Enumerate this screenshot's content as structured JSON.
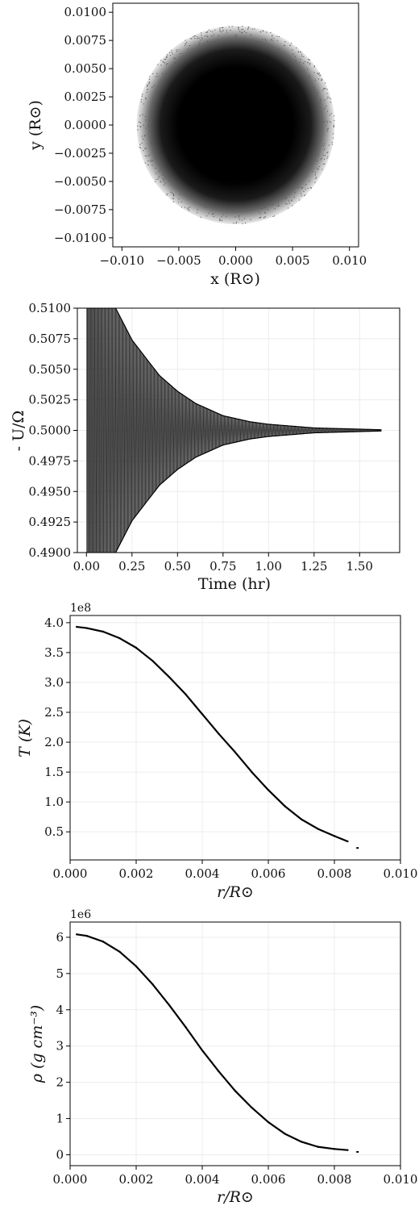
{
  "chart_data": [
    {
      "type": "scatter",
      "id": "particles",
      "xlabel": "x (R⊙)",
      "ylabel": "y (R⊙)",
      "xlim": [
        -0.0108,
        0.0108
      ],
      "ylim": [
        -0.0108,
        0.0108
      ],
      "xticks": [
        -0.01,
        -0.005,
        0.0,
        0.005,
        0.01
      ],
      "xtick_labels": [
        "−0.010",
        "−0.005",
        "0.000",
        "0.005",
        "0.010"
      ],
      "yticks": [
        0.01,
        0.0075,
        0.005,
        0.0025,
        0.0,
        -0.0025,
        -0.005,
        -0.0075,
        -0.01
      ],
      "ytick_labels": [
        "0.0100",
        "0.0075",
        "0.0050",
        "0.0025",
        "0.0000",
        "−0.0025",
        "−0.0050",
        "−0.0075",
        "−0.0100"
      ],
      "radius": 0.0087,
      "grid": false,
      "color": "#000000"
    },
    {
      "type": "line",
      "id": "energy",
      "xlabel": "Time (hr)",
      "ylabel": "- U/Ω",
      "xlim": [
        -0.05,
        1.72
      ],
      "ylim": [
        0.49,
        0.51
      ],
      "xticks": [
        0.0,
        0.25,
        0.5,
        0.75,
        1.0,
        1.25,
        1.5
      ],
      "xtick_labels": [
        "0.00",
        "0.25",
        "0.50",
        "0.75",
        "1.00",
        "1.25",
        "1.50"
      ],
      "yticks": [
        0.51,
        0.5075,
        0.505,
        0.5025,
        0.5,
        0.4975,
        0.495,
        0.4925,
        0.49
      ],
      "ytick_labels": [
        "0.5100",
        "0.5075",
        "0.5050",
        "0.5025",
        "0.5000",
        "0.4975",
        "0.4950",
        "0.4925",
        "0.4900"
      ],
      "equilibrium": 0.5,
      "t_end": 1.62,
      "envelope": [
        {
          "t": 0.0,
          "amp": 0.03
        },
        {
          "t": 0.1,
          "amp": 0.0125
        },
        {
          "t": 0.15,
          "amp": 0.0103
        },
        {
          "t": 0.25,
          "amp": 0.0074
        },
        {
          "t": 0.4,
          "amp": 0.0045
        },
        {
          "t": 0.5,
          "amp": 0.0032
        },
        {
          "t": 0.6,
          "amp": 0.0022
        },
        {
          "t": 0.75,
          "amp": 0.0012
        },
        {
          "t": 0.9,
          "amp": 0.0007
        },
        {
          "t": 1.0,
          "amp": 0.0005
        },
        {
          "t": 1.25,
          "amp": 0.0002
        },
        {
          "t": 1.5,
          "amp": 0.0001
        },
        {
          "t": 1.62,
          "amp": 5e-05
        }
      ],
      "grid": true,
      "color": "#000000"
    },
    {
      "type": "scatter",
      "id": "temperature",
      "xlabel": "r/R⊙",
      "ylabel": "T  (K)",
      "offset_text": "1e8",
      "xlim": [
        0.0,
        0.01
      ],
      "ylim": [
        0.03,
        4.12
      ],
      "xticks": [
        0.0,
        0.002,
        0.004,
        0.006,
        0.008,
        0.01
      ],
      "xtick_labels": [
        "0.000",
        "0.002",
        "0.004",
        "0.006",
        "0.008",
        "0.010"
      ],
      "yticks": [
        4.0,
        3.5,
        3.0,
        2.5,
        2.0,
        1.5,
        1.0,
        0.5
      ],
      "ytick_labels": [
        "4.0",
        "3.5",
        "3.0",
        "2.5",
        "2.0",
        "1.5",
        "1.0",
        "0.5"
      ],
      "points": [
        {
          "r": 0.0002,
          "T": 3.93
        },
        {
          "r": 0.0005,
          "T": 3.91
        },
        {
          "r": 0.001,
          "T": 3.85
        },
        {
          "r": 0.0015,
          "T": 3.74
        },
        {
          "r": 0.002,
          "T": 3.58
        },
        {
          "r": 0.0025,
          "T": 3.36
        },
        {
          "r": 0.003,
          "T": 3.09
        },
        {
          "r": 0.0035,
          "T": 2.8
        },
        {
          "r": 0.004,
          "T": 2.47
        },
        {
          "r": 0.0045,
          "T": 2.14
        },
        {
          "r": 0.005,
          "T": 1.83
        },
        {
          "r": 0.0055,
          "T": 1.5
        },
        {
          "r": 0.006,
          "T": 1.2
        },
        {
          "r": 0.0065,
          "T": 0.93
        },
        {
          "r": 0.007,
          "T": 0.71
        },
        {
          "r": 0.0075,
          "T": 0.55
        },
        {
          "r": 0.008,
          "T": 0.43
        },
        {
          "r": 0.0084,
          "T": 0.34
        }
      ],
      "outliers": [
        {
          "r": 0.0087,
          "T": 0.23
        }
      ],
      "grid": true,
      "color": "#000000"
    },
    {
      "type": "scatter",
      "id": "density",
      "xlabel": "r/R⊙",
      "ylabel": "ρ (g cm⁻³)",
      "offset_text": "1e6",
      "xlim": [
        0.0,
        0.01
      ],
      "ylim": [
        -0.3,
        6.42
      ],
      "xticks": [
        0.0,
        0.002,
        0.004,
        0.006,
        0.008,
        0.01
      ],
      "xtick_labels": [
        "0.000",
        "0.002",
        "0.004",
        "0.006",
        "0.008",
        "0.010"
      ],
      "yticks": [
        6,
        5,
        4,
        3,
        2,
        1,
        0
      ],
      "ytick_labels": [
        "6",
        "5",
        "4",
        "3",
        "2",
        "1",
        "0"
      ],
      "points": [
        {
          "r": 0.0002,
          "rho": 6.08
        },
        {
          "r": 0.0005,
          "rho": 6.04
        },
        {
          "r": 0.001,
          "rho": 5.88
        },
        {
          "r": 0.0015,
          "rho": 5.6
        },
        {
          "r": 0.002,
          "rho": 5.2
        },
        {
          "r": 0.0025,
          "rho": 4.7
        },
        {
          "r": 0.003,
          "rho": 4.13
        },
        {
          "r": 0.0035,
          "rho": 3.52
        },
        {
          "r": 0.004,
          "rho": 2.88
        },
        {
          "r": 0.0045,
          "rho": 2.3
        },
        {
          "r": 0.005,
          "rho": 1.76
        },
        {
          "r": 0.0055,
          "rho": 1.3
        },
        {
          "r": 0.006,
          "rho": 0.9
        },
        {
          "r": 0.0065,
          "rho": 0.58
        },
        {
          "r": 0.007,
          "rho": 0.36
        },
        {
          "r": 0.0075,
          "rho": 0.22
        },
        {
          "r": 0.008,
          "rho": 0.16
        },
        {
          "r": 0.0084,
          "rho": 0.13
        }
      ],
      "outliers": [
        {
          "r": 0.0087,
          "rho": 0.08
        }
      ],
      "grid": true,
      "color": "#000000"
    }
  ]
}
